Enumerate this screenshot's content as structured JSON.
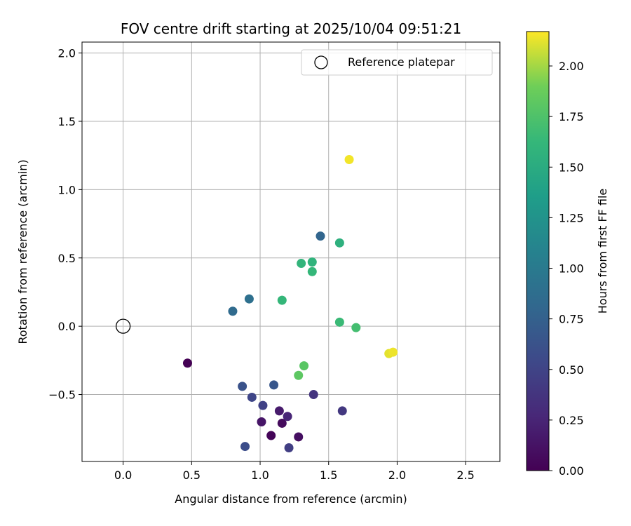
{
  "chart_data": {
    "type": "scatter",
    "title": "FOV centre drift starting at 2025/10/04 09:51:21",
    "xlabel": "Angular distance from reference (arcmin)",
    "ylabel": "Rotation from reference (arcmin)",
    "xlim": [
      -0.3,
      2.75
    ],
    "ylim": [
      -0.99,
      2.08
    ],
    "xticks": [
      0.0,
      0.5,
      1.0,
      1.5,
      2.0,
      2.5
    ],
    "xtick_labels": [
      "0.0",
      "0.5",
      "1.0",
      "1.5",
      "2.0",
      "2.5"
    ],
    "yticks": [
      -0.5,
      0.0,
      0.5,
      1.0,
      1.5,
      2.0
    ],
    "ytick_labels": [
      "−0.5",
      "0.0",
      "0.5",
      "1.0",
      "1.5",
      "2.0"
    ],
    "grid": true,
    "colormap": "viridis",
    "colorbar": {
      "label": "Hours from first FF file",
      "range": [
        0.0,
        2.17
      ],
      "ticks": [
        0.0,
        0.25,
        0.5,
        0.75,
        1.0,
        1.25,
        1.5,
        1.75,
        2.0
      ],
      "tick_labels": [
        "0.00",
        "0.25",
        "0.50",
        "0.75",
        "1.00",
        "1.25",
        "1.50",
        "1.75",
        "2.00"
      ]
    },
    "reference": {
      "name": "Reference platepar",
      "x": 0.0,
      "y": 0.0
    },
    "legend": {
      "entries": [
        "Reference platepar"
      ],
      "placement": "top-right"
    },
    "points": [
      {
        "x": 0.47,
        "y": -0.27,
        "hours": 0.0
      },
      {
        "x": 1.08,
        "y": -0.8,
        "hours": 0.03
      },
      {
        "x": 1.16,
        "y": -0.71,
        "hours": 0.07
      },
      {
        "x": 1.28,
        "y": -0.81,
        "hours": 0.1
      },
      {
        "x": 1.01,
        "y": -0.7,
        "hours": 0.14
      },
      {
        "x": 1.14,
        "y": -0.62,
        "hours": 0.18
      },
      {
        "x": 1.2,
        "y": -0.66,
        "hours": 0.26
      },
      {
        "x": 1.39,
        "y": -0.5,
        "hours": 0.37
      },
      {
        "x": 1.6,
        "y": -0.62,
        "hours": 0.4
      },
      {
        "x": 1.21,
        "y": -0.89,
        "hours": 0.45
      },
      {
        "x": 1.02,
        "y": -0.58,
        "hours": 0.48
      },
      {
        "x": 0.94,
        "y": -0.52,
        "hours": 0.52
      },
      {
        "x": 0.89,
        "y": -0.88,
        "hours": 0.58
      },
      {
        "x": 0.87,
        "y": -0.44,
        "hours": 0.62
      },
      {
        "x": 1.1,
        "y": -0.43,
        "hours": 0.66
      },
      {
        "x": 1.44,
        "y": 0.66,
        "hours": 0.8
      },
      {
        "x": 0.8,
        "y": 0.11,
        "hours": 0.85
      },
      {
        "x": 0.92,
        "y": 0.2,
        "hours": 0.9
      },
      {
        "x": 1.58,
        "y": 0.61,
        "hours": 1.55
      },
      {
        "x": 1.38,
        "y": 0.47,
        "hours": 1.58
      },
      {
        "x": 1.3,
        "y": 0.46,
        "hours": 1.6
      },
      {
        "x": 1.38,
        "y": 0.4,
        "hours": 1.62
      },
      {
        "x": 1.16,
        "y": 0.19,
        "hours": 1.62
      },
      {
        "x": 1.58,
        "y": 0.03,
        "hours": 1.65
      },
      {
        "x": 1.7,
        "y": -0.01,
        "hours": 1.7
      },
      {
        "x": 1.32,
        "y": -0.29,
        "hours": 1.8
      },
      {
        "x": 1.28,
        "y": -0.36,
        "hours": 1.82
      },
      {
        "x": 1.65,
        "y": 1.22,
        "hours": 2.15
      },
      {
        "x": 1.94,
        "y": -0.2,
        "hours": 2.12
      },
      {
        "x": 1.97,
        "y": -0.19,
        "hours": 2.14
      }
    ]
  }
}
